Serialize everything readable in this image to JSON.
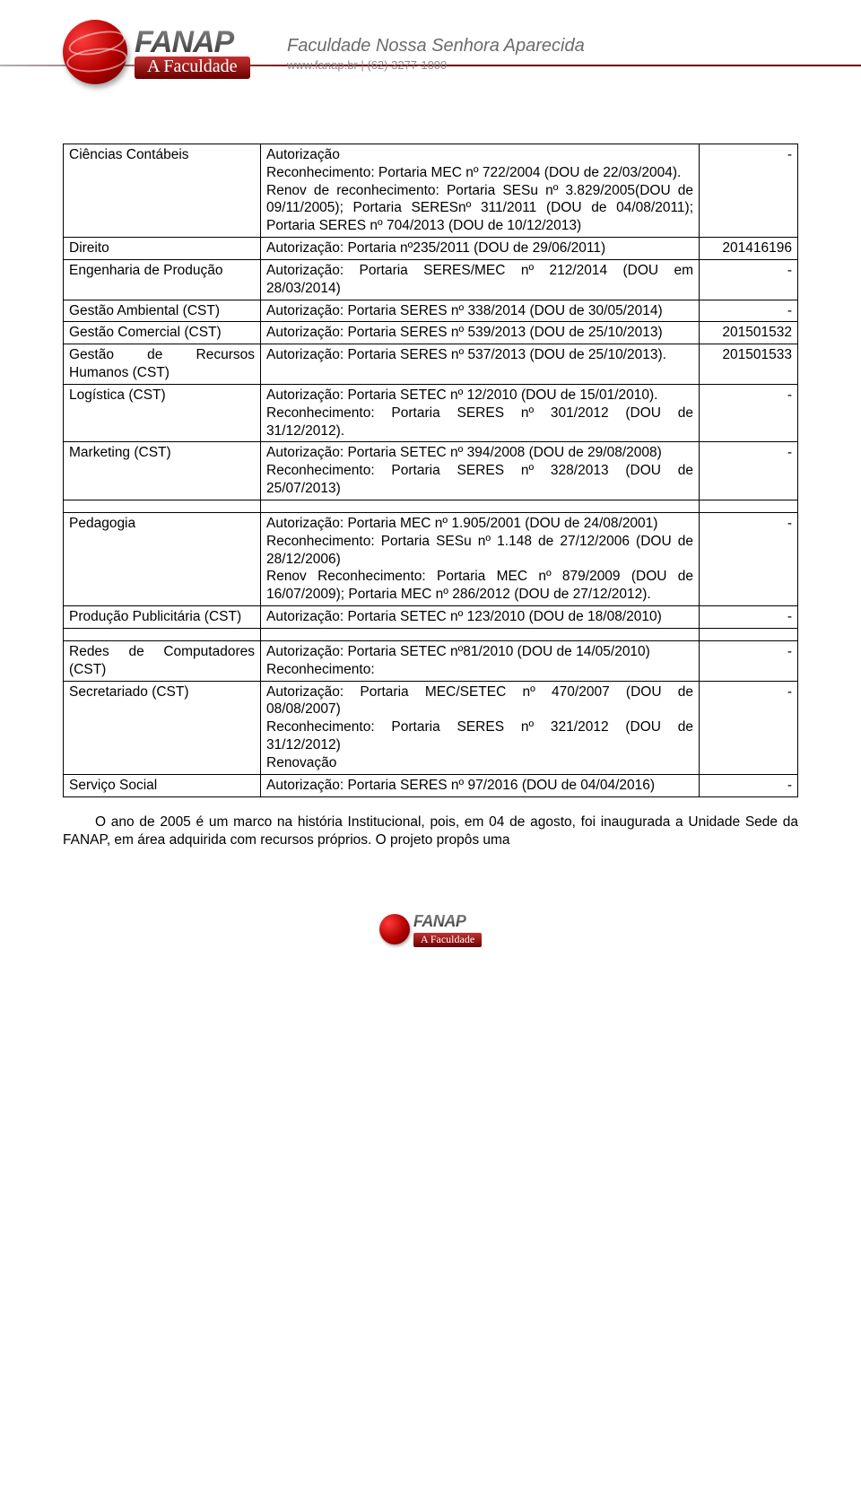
{
  "header": {
    "brand": "FANAP",
    "tagline": "A Faculdade",
    "institution": "Faculdade Nossa Senhora Aparecida",
    "contact": "www.fanap.br | (62) 3277-1000"
  },
  "table": {
    "rows": [
      {
        "course": "Ciências Contábeis",
        "detail": "Autorização\nReconhecimento: Portaria MEC nº 722/2004 (DOU de 22/03/2004).\nRenov de reconhecimento: Portaria SESu nº 3.829/2005(DOU de 09/11/2005); Portaria SERESnº 311/2011 (DOU de 04/08/2011); Portaria SERES nº 704/2013 (DOU de 10/12/2013)",
        "code": "-"
      },
      {
        "course": "Direito",
        "detail": "Autorização: Portaria nº235/2011 (DOU de 29/06/2011)",
        "code": "201416196"
      },
      {
        "course": "Engenharia de Produção",
        "detail": "Autorização: Portaria SERES/MEC nº 212/2014 (DOU em 28/03/2014)",
        "code": "-"
      },
      {
        "course": "Gestão Ambiental (CST)",
        "detail": "Autorização: Portaria SERES nº 338/2014 (DOU de 30/05/2014)",
        "code": "-"
      },
      {
        "course": "Gestão Comercial (CST)",
        "detail": "Autorização: Portaria SERES nº 539/2013 (DOU de 25/10/2013)",
        "code": "201501532"
      },
      {
        "course": "Gestão de Recursos Humanos (CST)",
        "detail": "Autorização: Portaria SERES nº 537/2013 (DOU de 25/10/2013).",
        "code": "201501533"
      },
      {
        "course": "Logística (CST)",
        "detail": "Autorização: Portaria SETEC nº 12/2010 (DOU de 15/01/2010).\nReconhecimento: Portaria SERES nº 301/2012 (DOU de 31/12/2012).",
        "code": "-"
      },
      {
        "course": "Marketing (CST)",
        "detail": "Autorização: Portaria SETEC nº 394/2008 (DOU de 29/08/2008)\nReconhecimento: Portaria SERES nº 328/2013 (DOU de 25/07/2013)",
        "code": "-"
      },
      {
        "spacer": true
      },
      {
        "course": "Pedagogia",
        "detail": "Autorização: Portaria MEC nº 1.905/2001 (DOU de 24/08/2001)\nReconhecimento: Portaria SESu nº 1.148 de 27/12/2006 (DOU de 28/12/2006)\nRenov Reconhecimento: Portaria MEC nº 879/2009 (DOU de 16/07/2009); Portaria MEC nº 286/2012 (DOU de 27/12/2012).",
        "code": "-"
      },
      {
        "course": "Produção Publicitária (CST)",
        "detail": "Autorização: Portaria SETEC nº 123/2010 (DOU de 18/08/2010)",
        "code": "-"
      },
      {
        "spacer": true
      },
      {
        "course": "Redes de Computadores (CST)",
        "detail": "Autorização: Portaria SETEC nº81/2010 (DOU de 14/05/2010)\nReconhecimento:",
        "code": "-"
      },
      {
        "course": "Secretariado (CST)",
        "detail": "Autorização: Portaria MEC/SETEC nº 470/2007 (DOU de 08/08/2007)\nReconhecimento: Portaria SERES nº 321/2012 (DOU de 31/12/2012)\nRenovação",
        "code": "-"
      },
      {
        "course": "Serviço Social",
        "detail": "Autorização: Portaria SERES nº 97/2016 (DOU de 04/04/2016)",
        "code": "-"
      }
    ]
  },
  "paragraph": "O ano de 2005 é um marco na história Institucional, pois, em 04 de agosto, foi inaugurada a Unidade Sede da FANAP, em área adquirida com recursos próprios. O projeto propôs uma",
  "footer": {
    "brand": "FANAP",
    "tagline": "A Faculdade"
  }
}
